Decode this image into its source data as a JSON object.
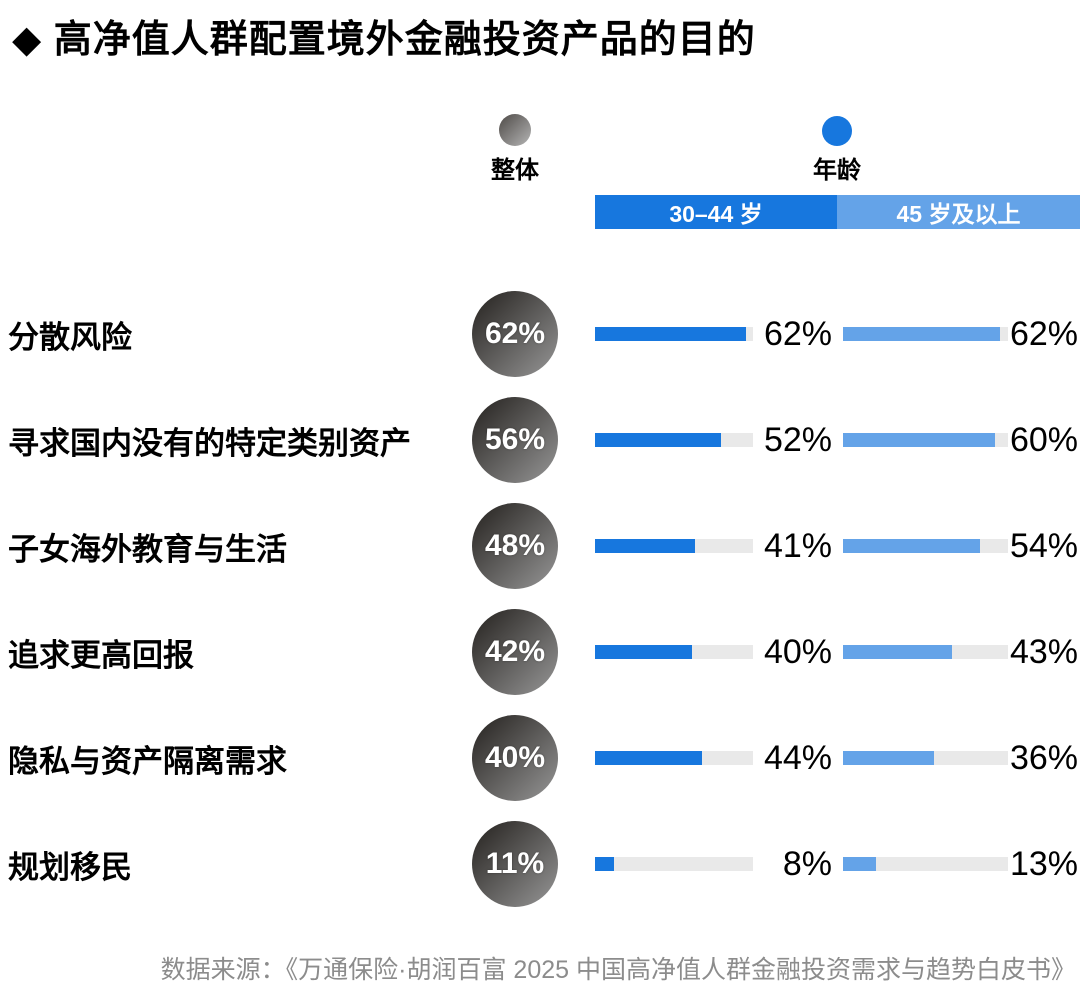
{
  "title": "◆ 高净值人群配置境外金融投资产品的目的",
  "legend": {
    "overall": {
      "label": "整体",
      "color_start": "#4e4a47",
      "color_end": "#b5b5b5"
    },
    "age": {
      "label": "年龄",
      "color": "#1777DE"
    }
  },
  "columns": [
    {
      "label": "30–44 岁",
      "color": "#1777DE"
    },
    {
      "label": "45 岁及以上",
      "color": "#64A3E8"
    }
  ],
  "colors": {
    "bar_dark_blue": "#1777DE",
    "bar_light_blue": "#64A3E8",
    "bar_track": "#E9E9E9",
    "circle_gradient_start": "#23201d",
    "circle_gradient_end": "#979797",
    "source_text": "#8c8c8c"
  },
  "source": "数据来源：《万通保险·胡润百富 2025 中国高净值人群金融投资需求与趋势白皮书》",
  "chart_data": {
    "type": "bar",
    "orientation": "horizontal",
    "title": "高净值人群配置境外金融投资产品的目的",
    "categories": [
      "分散风险",
      "寻求国内没有的特定类别资产",
      "子女海外教育与生活",
      "追求更高回报",
      "隐私与资产隔离需求",
      "规划移民"
    ],
    "series": [
      {
        "name": "整体",
        "values": [
          62,
          56,
          48,
          42,
          40,
          11
        ]
      },
      {
        "name": "30–44 岁",
        "values": [
          62,
          52,
          41,
          40,
          44,
          8
        ]
      },
      {
        "name": "45 岁及以上",
        "values": [
          62,
          60,
          54,
          43,
          36,
          13
        ]
      }
    ],
    "value_suffix": "%",
    "bar_axis_max": 65,
    "legend_position": "top",
    "grid": false
  }
}
